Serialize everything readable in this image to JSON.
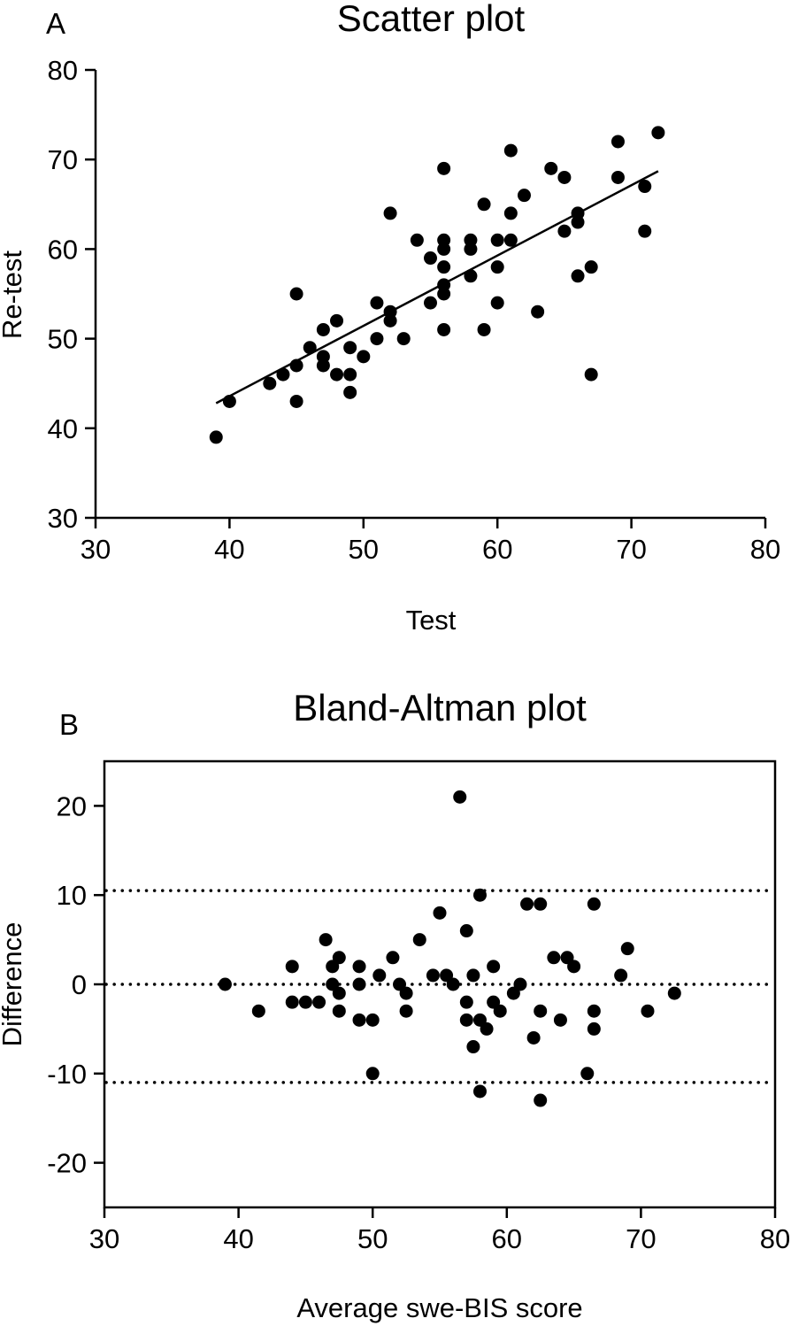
{
  "chart_data": [
    {
      "panel": "A",
      "type": "scatter",
      "title": "Scatter plot",
      "xlabel": "Test",
      "ylabel": "Re-test",
      "xlim": [
        30,
        80
      ],
      "ylim": [
        30,
        80
      ],
      "x_ticks": [
        30,
        40,
        50,
        60,
        70,
        80
      ],
      "y_ticks": [
        30,
        40,
        50,
        60,
        70,
        80
      ],
      "frame": "left-bottom",
      "regression_line": {
        "x": [
          39,
          72
        ],
        "y": [
          42.8,
          68.7
        ]
      },
      "points": [
        [
          39,
          39
        ],
        [
          40,
          43
        ],
        [
          43,
          45
        ],
        [
          44,
          46
        ],
        [
          45,
          55
        ],
        [
          45,
          47
        ],
        [
          45,
          43
        ],
        [
          46,
          49
        ],
        [
          47,
          51
        ],
        [
          47,
          48
        ],
        [
          47,
          47
        ],
        [
          48,
          52
        ],
        [
          48,
          46
        ],
        [
          49,
          49
        ],
        [
          49,
          46
        ],
        [
          49,
          44
        ],
        [
          50,
          48
        ],
        [
          51,
          54
        ],
        [
          51,
          50
        ],
        [
          52,
          64
        ],
        [
          52,
          53
        ],
        [
          52,
          52
        ],
        [
          53,
          50
        ],
        [
          54,
          61
        ],
        [
          55,
          59
        ],
        [
          55,
          54
        ],
        [
          56,
          69
        ],
        [
          56,
          61
        ],
        [
          56,
          60
        ],
        [
          56,
          58
        ],
        [
          56,
          56
        ],
        [
          56,
          55
        ],
        [
          56,
          51
        ],
        [
          58,
          61
        ],
        [
          58,
          60
        ],
        [
          58,
          57
        ],
        [
          59,
          65
        ],
        [
          59,
          51
        ],
        [
          60,
          61
        ],
        [
          60,
          58
        ],
        [
          60,
          54
        ],
        [
          61,
          71
        ],
        [
          61,
          64
        ],
        [
          61,
          61
        ],
        [
          62,
          66
        ],
        [
          63,
          53
        ],
        [
          64,
          69
        ],
        [
          65,
          68
        ],
        [
          65,
          62
        ],
        [
          66,
          64
        ],
        [
          66,
          63
        ],
        [
          66,
          57
        ],
        [
          67,
          58
        ],
        [
          67,
          46
        ],
        [
          69,
          72
        ],
        [
          69,
          68
        ],
        [
          71,
          67
        ],
        [
          71,
          62
        ],
        [
          72,
          73
        ]
      ]
    },
    {
      "panel": "B",
      "type": "scatter",
      "title": "Bland-Altman plot",
      "xlabel": "Average swe-BIS score",
      "ylabel": "Difference",
      "xlim": [
        30,
        80
      ],
      "ylim": [
        -25,
        25
      ],
      "x_ticks": [
        30,
        40,
        50,
        60,
        70,
        80
      ],
      "y_ticks": [
        -20,
        -10,
        0,
        10,
        20
      ],
      "frame": "box",
      "reference_lines": [
        10.5,
        0,
        -11
      ],
      "points": [
        [
          39,
          0
        ],
        [
          41.5,
          -3
        ],
        [
          44,
          2
        ],
        [
          44,
          -2
        ],
        [
          45,
          -2
        ],
        [
          46,
          -2
        ],
        [
          46.5,
          5
        ],
        [
          47,
          2
        ],
        [
          47,
          0
        ],
        [
          47.5,
          3
        ],
        [
          47.5,
          -1
        ],
        [
          47.5,
          -3
        ],
        [
          49,
          2
        ],
        [
          49,
          0
        ],
        [
          49,
          -4
        ],
        [
          50,
          -4
        ],
        [
          50,
          -10
        ],
        [
          50.5,
          1
        ],
        [
          51.5,
          3
        ],
        [
          52,
          0
        ],
        [
          52.5,
          -1
        ],
        [
          52.5,
          -3
        ],
        [
          53.5,
          5
        ],
        [
          54.5,
          1
        ],
        [
          55,
          8
        ],
        [
          55.5,
          1
        ],
        [
          56,
          0
        ],
        [
          56.5,
          21
        ],
        [
          57,
          6
        ],
        [
          57,
          -2
        ],
        [
          57,
          -4
        ],
        [
          57.5,
          1
        ],
        [
          57.5,
          -7
        ],
        [
          58,
          10
        ],
        [
          58,
          -4
        ],
        [
          58,
          -12
        ],
        [
          58.5,
          -5
        ],
        [
          59,
          2
        ],
        [
          59,
          -2
        ],
        [
          59.5,
          -3
        ],
        [
          60.5,
          -1
        ],
        [
          61,
          0
        ],
        [
          61.5,
          9
        ],
        [
          62,
          -6
        ],
        [
          62.5,
          9
        ],
        [
          62.5,
          -3
        ],
        [
          62.5,
          -13
        ],
        [
          63.5,
          3
        ],
        [
          64,
          -4
        ],
        [
          64.5,
          3
        ],
        [
          65,
          2
        ],
        [
          66,
          -10
        ],
        [
          66.5,
          9
        ],
        [
          66.5,
          -3
        ],
        [
          66.5,
          -5
        ],
        [
          68.5,
          1
        ],
        [
          69,
          4
        ],
        [
          70.5,
          -3
        ],
        [
          72.5,
          -1
        ]
      ]
    }
  ]
}
